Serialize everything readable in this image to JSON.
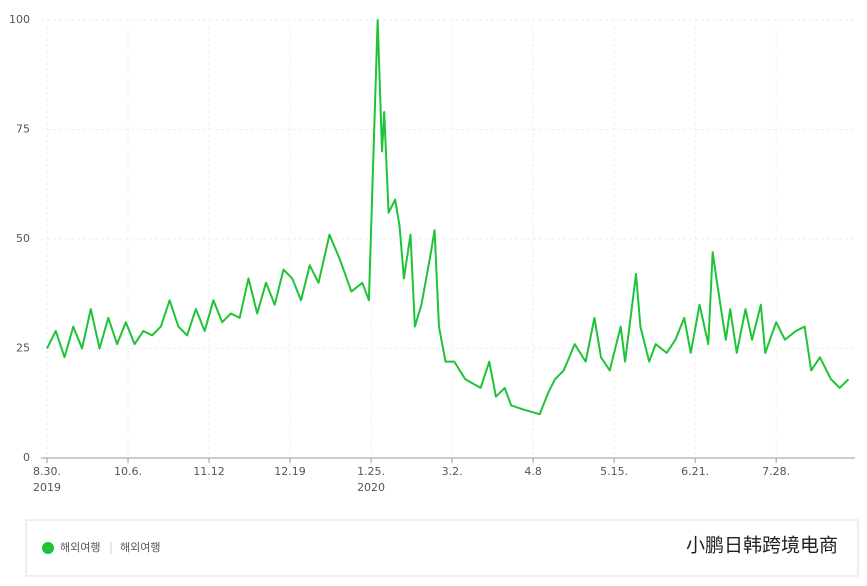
{
  "chart_data": {
    "type": "line",
    "x": [
      0,
      4,
      8,
      12,
      16,
      20,
      24,
      28,
      32,
      36,
      40,
      44,
      48,
      52,
      56,
      60,
      64,
      68,
      72,
      76,
      80,
      84,
      88,
      92,
      96,
      100,
      104,
      108,
      112,
      116,
      120,
      124,
      129,
      134,
      139,
      144,
      147,
      151,
      153,
      154,
      156,
      159,
      161,
      163,
      166,
      168,
      171,
      175,
      177,
      179,
      182,
      186,
      191,
      198,
      202,
      205,
      209,
      212,
      218,
      225,
      229,
      232,
      236,
      241,
      246,
      250,
      253,
      257,
      262,
      264,
      269,
      271,
      275,
      278,
      283,
      287,
      291,
      294,
      298,
      302,
      304,
      306,
      310,
      312,
      315,
      319,
      322,
      326,
      328,
      333,
      337,
      342,
      346,
      349,
      353,
      358,
      362,
      366
    ],
    "series": [
      {
        "name": "해외여행",
        "color": "#1ec337",
        "values": [
          25,
          29,
          23,
          30,
          25,
          34,
          25,
          32,
          26,
          31,
          26,
          29,
          28,
          30,
          36,
          30,
          28,
          34,
          29,
          36,
          31,
          33,
          32,
          41,
          33,
          40,
          35,
          43,
          41,
          36,
          44,
          40,
          51,
          45,
          38,
          40,
          36,
          100,
          70,
          79,
          56,
          59,
          53,
          41,
          51,
          30,
          35,
          46,
          52,
          30,
          22,
          22,
          18,
          16,
          22,
          14,
          16,
          12,
          11,
          10,
          15,
          18,
          20,
          26,
          22,
          32,
          23,
          20,
          30,
          22,
          42,
          30,
          22,
          26,
          24,
          27,
          32,
          24,
          35,
          26,
          47,
          40,
          27,
          34,
          24,
          34,
          27,
          35,
          24,
          31,
          27,
          29,
          30,
          20,
          23,
          18,
          16,
          18
        ]
      }
    ],
    "xlim": [
      0,
      369
    ],
    "xticks": [
      {
        "value": 0,
        "label": "8.30."
      },
      {
        "value": 37,
        "label": "10.6."
      },
      {
        "value": 74,
        "label": "11.12"
      },
      {
        "value": 111,
        "label": "12.19"
      },
      {
        "value": 148,
        "label": "1.25."
      },
      {
        "value": 185,
        "label": "3.2."
      },
      {
        "value": 222,
        "label": "4.8"
      },
      {
        "value": 259,
        "label": "5.15."
      },
      {
        "value": 296,
        "label": "6.21."
      },
      {
        "value": 333,
        "label": "7.28."
      }
    ],
    "year_labels": [
      {
        "value": 0,
        "label": "2019"
      },
      {
        "value": 148,
        "label": "2020"
      }
    ],
    "ylim": [
      0,
      100
    ],
    "yticks": [
      0,
      25,
      50,
      75,
      100
    ],
    "grid": true,
    "legend_extra": "해외여행",
    "watermark": "小鹏日韩跨境电商"
  }
}
